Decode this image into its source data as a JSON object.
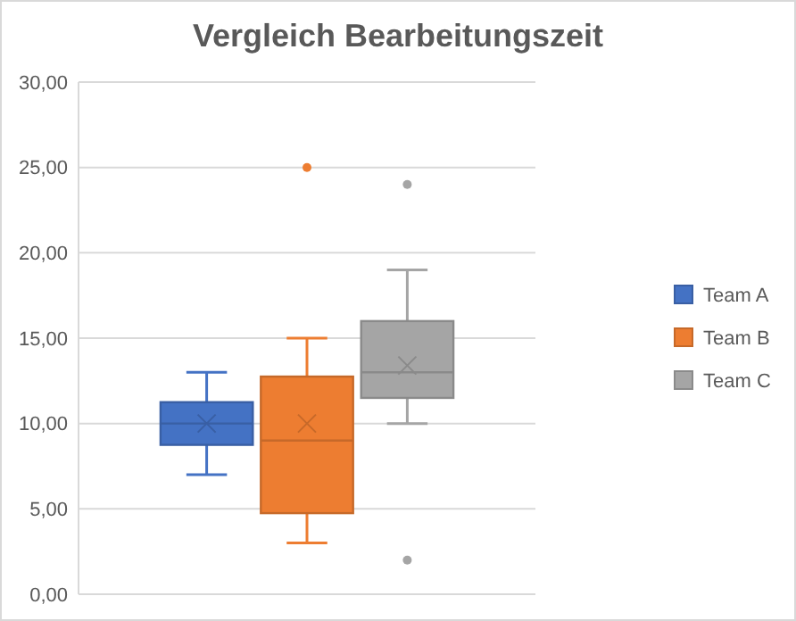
{
  "chart_data": {
    "type": "box",
    "title": "Vergleich Bearbeitungszeit",
    "categories": [
      null
    ],
    "series": [
      {
        "name": "Team A",
        "color": "#4472c4",
        "boxes": [
          {
            "low": 7,
            "q1": 8.75,
            "median": 10,
            "q3": 11.25,
            "high": 13,
            "mean": 10
          }
        ]
      },
      {
        "name": "Team B",
        "color": "#ed7d31",
        "boxes": [
          {
            "low": 3,
            "q1": 4.75,
            "median": 9,
            "q3": 12.75,
            "high": 15,
            "mean": 10,
            "outliers": [
              25
            ]
          }
        ]
      },
      {
        "name": "Team C",
        "color": "#a5a5a5",
        "boxes": [
          {
            "low": 10,
            "q1": 11.5,
            "median": 13,
            "q3": 16,
            "high": 19,
            "mean": 13.4,
            "outliers": [
              24,
              2
            ]
          }
        ]
      }
    ],
    "ylim": [
      0,
      30
    ],
    "yticks": [
      {
        "value": 0,
        "label": "0,00"
      },
      {
        "value": 5,
        "label": "5,00"
      },
      {
        "value": 10,
        "label": "10,00"
      },
      {
        "value": 15,
        "label": "15,00"
      },
      {
        "value": 20,
        "label": "20,00"
      },
      {
        "value": 25,
        "label": "25,00"
      },
      {
        "value": 30,
        "label": "30,00"
      }
    ],
    "grid": "y",
    "legend": "right"
  }
}
